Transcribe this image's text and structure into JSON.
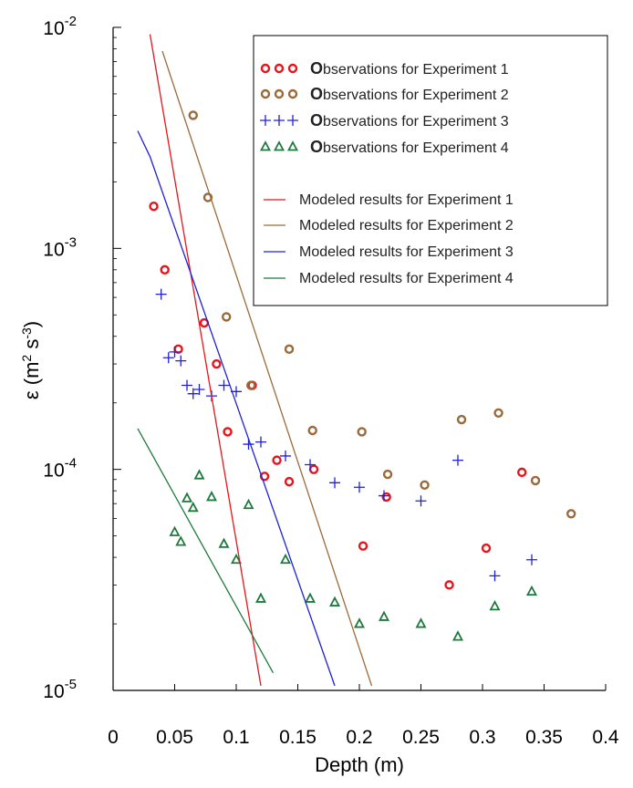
{
  "chart_data": {
    "type": "scatter",
    "xlabel": "Depth (m)",
    "ylabel_main": "ε (m",
    "ylabel_sup1": "2",
    "ylabel_mid": " s",
    "ylabel_sup2": "-3",
    "ylabel_end": ")",
    "xlim": [
      0,
      0.4
    ],
    "ylim": [
      1e-05,
      0.01
    ],
    "yscale": "log",
    "grid": false,
    "legend_position": "top-right",
    "x_ticks": [
      "0",
      "0.05",
      "0.1",
      "0.15",
      "0.2",
      "0.25",
      "0.3",
      "0.35",
      "0.4"
    ],
    "x_tick_values": [
      0,
      0.05,
      0.1,
      0.15,
      0.2,
      0.25,
      0.3,
      0.35,
      0.4
    ],
    "y_ticks": [
      {
        "value": 1e-05,
        "base": "10",
        "exp": "-5"
      },
      {
        "value": 0.0001,
        "base": "10",
        "exp": "-4"
      },
      {
        "value": 0.001,
        "base": "10",
        "exp": "-3"
      },
      {
        "value": 0.01,
        "base": "10",
        "exp": "-2"
      }
    ],
    "series": [
      {
        "name": "Observations for Experiment 1",
        "legend_bold": "O",
        "legend_rest": "bservations for Experiment 1",
        "kind": "scatter",
        "marker": "circle",
        "color": "#e8141c",
        "points": [
          [
            0.033,
            0.00155
          ],
          [
            0.042,
            0.0008
          ],
          [
            0.053,
            0.00035
          ],
          [
            0.074,
            0.00046
          ],
          [
            0.084,
            0.0003
          ],
          [
            0.093,
            0.000148
          ],
          [
            0.113,
            0.00024
          ],
          [
            0.123,
            9.3e-05
          ],
          [
            0.133,
            0.00011
          ],
          [
            0.143,
            8.8e-05
          ],
          [
            0.163,
            0.0001
          ],
          [
            0.222,
            7.5e-05
          ],
          [
            0.203,
            4.5e-05
          ],
          [
            0.273,
            3e-05
          ],
          [
            0.303,
            4.4e-05
          ],
          [
            0.332,
            9.7e-05
          ]
        ]
      },
      {
        "name": "Observations for Experiment 2",
        "legend_bold": "O",
        "legend_rest": "bservations for Experiment 2",
        "kind": "scatter",
        "marker": "circle",
        "color": "#9b6a3a",
        "points": [
          [
            0.065,
            0.004
          ],
          [
            0.077,
            0.0017
          ],
          [
            0.092,
            0.00049
          ],
          [
            0.112,
            0.00024
          ],
          [
            0.143,
            0.00035
          ],
          [
            0.162,
            0.00015
          ],
          [
            0.202,
            0.000148
          ],
          [
            0.223,
            9.5e-05
          ],
          [
            0.253,
            8.5e-05
          ],
          [
            0.283,
            0.000168
          ],
          [
            0.313,
            0.00018
          ],
          [
            0.343,
            8.9e-05
          ],
          [
            0.372,
            6.3e-05
          ]
        ]
      },
      {
        "name": "Observations for Experiment 3",
        "legend_bold": "O",
        "legend_rest": "bservations for Experiment 3",
        "kind": "scatter",
        "marker": "plus",
        "color": "#2020d8",
        "points": [
          [
            0.039,
            0.00062
          ],
          [
            0.045,
            0.00032
          ],
          [
            0.05,
            0.00034
          ],
          [
            0.055,
            0.00031
          ],
          [
            0.06,
            0.00024
          ],
          [
            0.065,
            0.00022
          ],
          [
            0.07,
            0.00023
          ],
          [
            0.08,
            0.000215
          ],
          [
            0.09,
            0.00024
          ],
          [
            0.1,
            0.000225
          ],
          [
            0.11,
            0.00013
          ],
          [
            0.12,
            0.000133
          ],
          [
            0.14,
            0.000115
          ],
          [
            0.16,
            0.000105
          ],
          [
            0.18,
            8.7e-05
          ],
          [
            0.2,
            8.3e-05
          ],
          [
            0.22,
            7.6e-05
          ],
          [
            0.25,
            7.2e-05
          ],
          [
            0.28,
            0.00011
          ],
          [
            0.31,
            3.3e-05
          ],
          [
            0.34,
            3.9e-05
          ]
        ]
      },
      {
        "name": "Observations for Experiment 4",
        "legend_bold": "O",
        "legend_rest": "bservations for Experiment 4",
        "kind": "scatter",
        "marker": "triangle",
        "color": "#1e7a3c",
        "points": [
          [
            0.05,
            5.2e-05
          ],
          [
            0.055,
            4.7e-05
          ],
          [
            0.06,
            7.4e-05
          ],
          [
            0.065,
            6.7e-05
          ],
          [
            0.07,
            9.4e-05
          ],
          [
            0.08,
            7.5e-05
          ],
          [
            0.09,
            4.6e-05
          ],
          [
            0.1,
            3.9e-05
          ],
          [
            0.11,
            6.9e-05
          ],
          [
            0.12,
            2.6e-05
          ],
          [
            0.14,
            3.9e-05
          ],
          [
            0.16,
            2.6e-05
          ],
          [
            0.18,
            2.5e-05
          ],
          [
            0.2,
            2e-05
          ],
          [
            0.22,
            2.15e-05
          ],
          [
            0.25,
            2e-05
          ],
          [
            0.28,
            1.75e-05
          ],
          [
            0.31,
            2.4e-05
          ],
          [
            0.34,
            2.8e-05
          ]
        ]
      },
      {
        "name": "Modeled results  for Experiment 1",
        "kind": "line",
        "color": "#e8141c",
        "points": [
          [
            0.03,
            0.0093
          ],
          [
            0.12,
            1.05e-05
          ]
        ]
      },
      {
        "name": "Modeled results  for Experiment 2",
        "kind": "line",
        "color": "#9b6a3a",
        "points": [
          [
            0.04,
            0.0078
          ],
          [
            0.21,
            1.05e-05
          ]
        ]
      },
      {
        "name": "Modeled results  for Experiment 3",
        "kind": "line",
        "color": "#2020d8",
        "points": [
          [
            0.02,
            0.0034
          ],
          [
            0.03,
            0.0026
          ],
          [
            0.18,
            1.05e-05
          ]
        ]
      },
      {
        "name": "Modeled results  for Experiment 4",
        "kind": "line",
        "color": "#1e7a3c",
        "points": [
          [
            0.02,
            0.000153
          ],
          [
            0.13,
            1.2e-05
          ]
        ]
      }
    ]
  }
}
